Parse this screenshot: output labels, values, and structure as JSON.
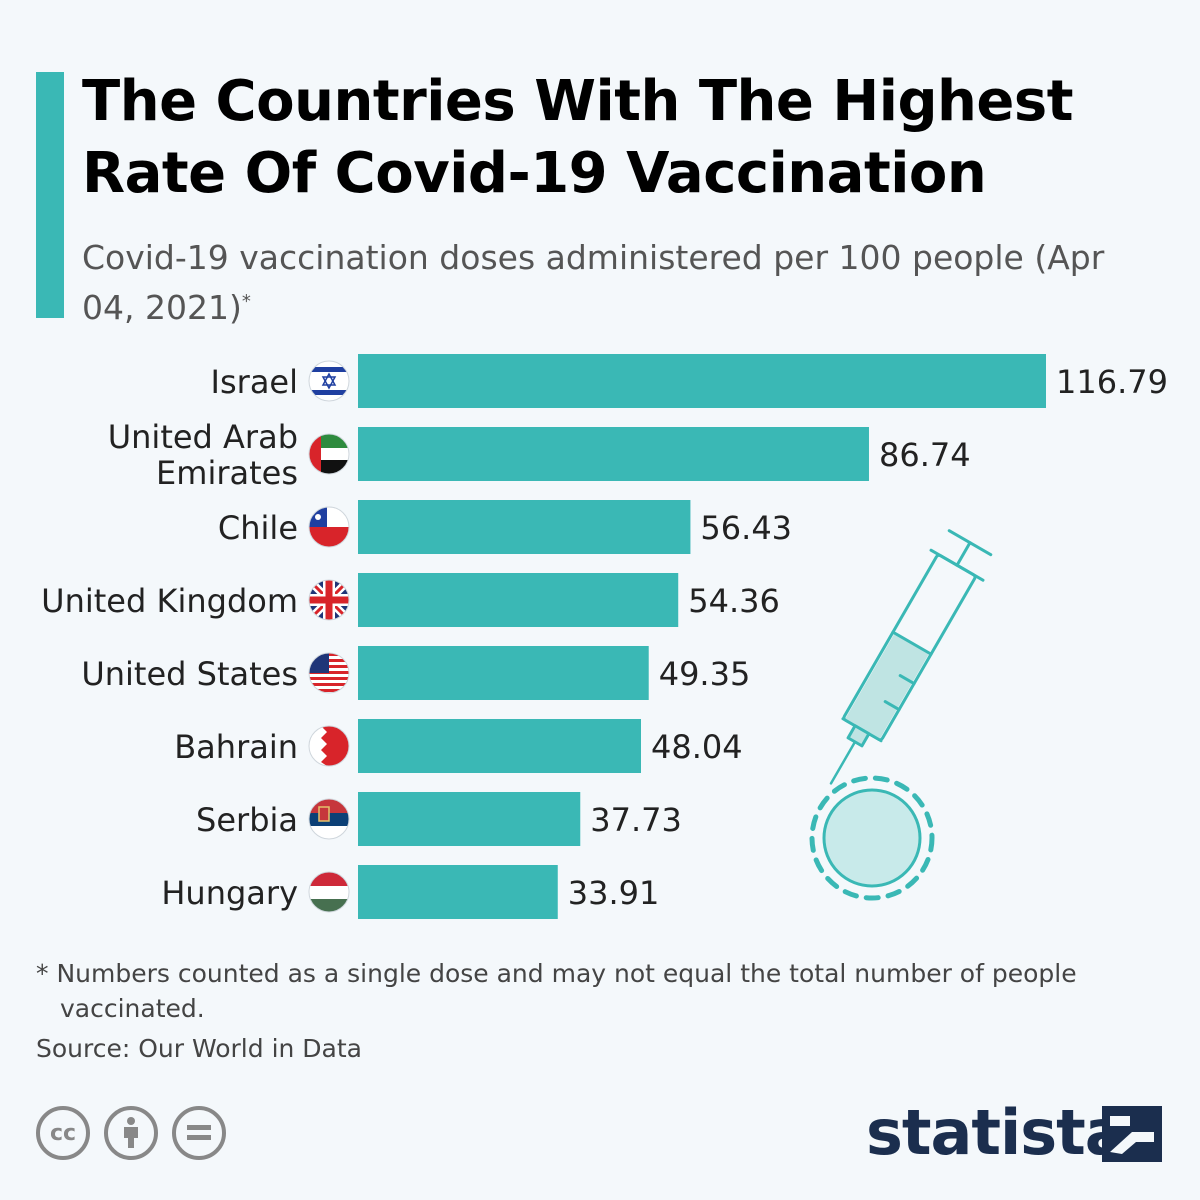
{
  "header": {
    "title": "The Countries With The Highest Rate Of Covid-19 Vaccination",
    "subtitle": "Covid-19 vaccination doses administered per 100 people (Apr 04, 2021)",
    "subtitle_mark": "*"
  },
  "chart_data": {
    "type": "bar",
    "orientation": "horizontal",
    "categories": [
      "Israel",
      "United Arab Emirates",
      "Chile",
      "United Kingdom",
      "United States",
      "Bahrain",
      "Serbia",
      "Hungary"
    ],
    "values": [
      116.79,
      86.74,
      56.43,
      54.36,
      49.35,
      48.04,
      37.73,
      33.91
    ],
    "value_labels": [
      "116.79",
      "86.74",
      "56.43",
      "54.36",
      "49.35",
      "48.04",
      "37.73",
      "33.91"
    ],
    "flag_icons": [
      "israel-flag-icon",
      "uae-flag-icon",
      "chile-flag-icon",
      "uk-flag-icon",
      "us-flag-icon",
      "bahrain-flag-icon",
      "serbia-flag-icon",
      "hungary-flag-icon"
    ],
    "bar_color": "#3ab8b5",
    "xlim": [
      0,
      120
    ],
    "grid": false,
    "legend": "none"
  },
  "footer": {
    "footnote": "* Numbers counted as a single dose and may not equal the total number of people vaccinated.",
    "source": "Source: Our World in Data",
    "license_icons": [
      "cc-icon",
      "attribution-icon",
      "no-derivatives-icon"
    ],
    "brand": "statista"
  },
  "colors": {
    "accent": "#3ab8b5",
    "brand": "#1b2e4e",
    "syringe": "#3ab8b5"
  },
  "decor": {
    "illustration": "syringe-virus-icon"
  }
}
